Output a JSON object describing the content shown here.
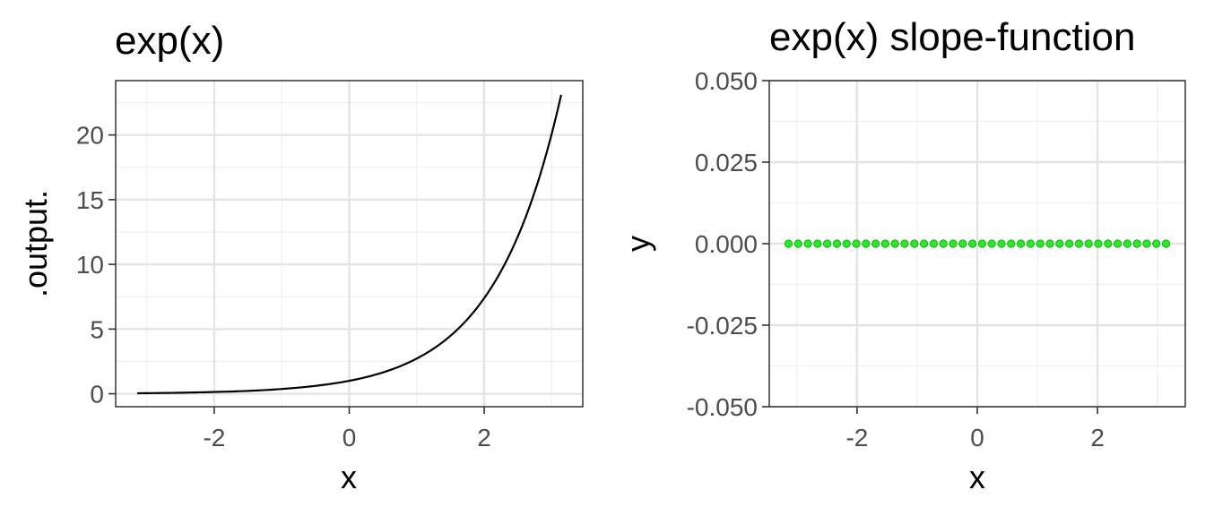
{
  "chart_data": [
    {
      "type": "line",
      "title": "exp(x)",
      "xlabel": "x",
      "ylabel": ".output.",
      "xlim": [
        -3.46,
        3.46
      ],
      "ylim": [
        -1.0,
        24.2
      ],
      "x_ticks": [
        -2,
        0,
        2
      ],
      "x_tick_labels": [
        "-2",
        "0",
        "2"
      ],
      "y_ticks": [
        0,
        5,
        10,
        15,
        20
      ],
      "y_tick_labels": [
        "0",
        "5",
        "10",
        "15",
        "20"
      ],
      "grid": true,
      "series": [
        {
          "color": "#000000",
          "x": [
            -3.14,
            -2.5,
            -2.0,
            -1.5,
            -1.0,
            -0.5,
            0.0,
            0.5,
            1.0,
            1.5,
            2.0,
            2.25,
            2.5,
            2.75,
            3.0,
            3.14
          ],
          "y": [
            0.04,
            0.08,
            0.14,
            0.22,
            0.37,
            0.61,
            1.0,
            1.65,
            2.72,
            4.48,
            7.39,
            9.49,
            12.18,
            15.64,
            20.09,
            23.1
          ]
        }
      ]
    },
    {
      "type": "scatter",
      "title": "exp(x) slope-function",
      "xlabel": "x",
      "ylabel": "y",
      "xlim": [
        -3.46,
        3.46
      ],
      "ylim": [
        -0.05,
        0.05
      ],
      "x_ticks": [
        -2,
        0,
        2
      ],
      "x_tick_labels": [
        "-2",
        "0",
        "2"
      ],
      "y_ticks": [
        -0.05,
        -0.025,
        0,
        0.025,
        0.05
      ],
      "y_tick_labels": [
        "-0.050",
        "-0.025",
        "0.000",
        "0.025",
        "0.050"
      ],
      "grid": true,
      "series": [
        {
          "color": "#22ee22",
          "x_range": [
            -3.14,
            3.14
          ],
          "count": 40,
          "y": 0.0
        }
      ]
    }
  ]
}
